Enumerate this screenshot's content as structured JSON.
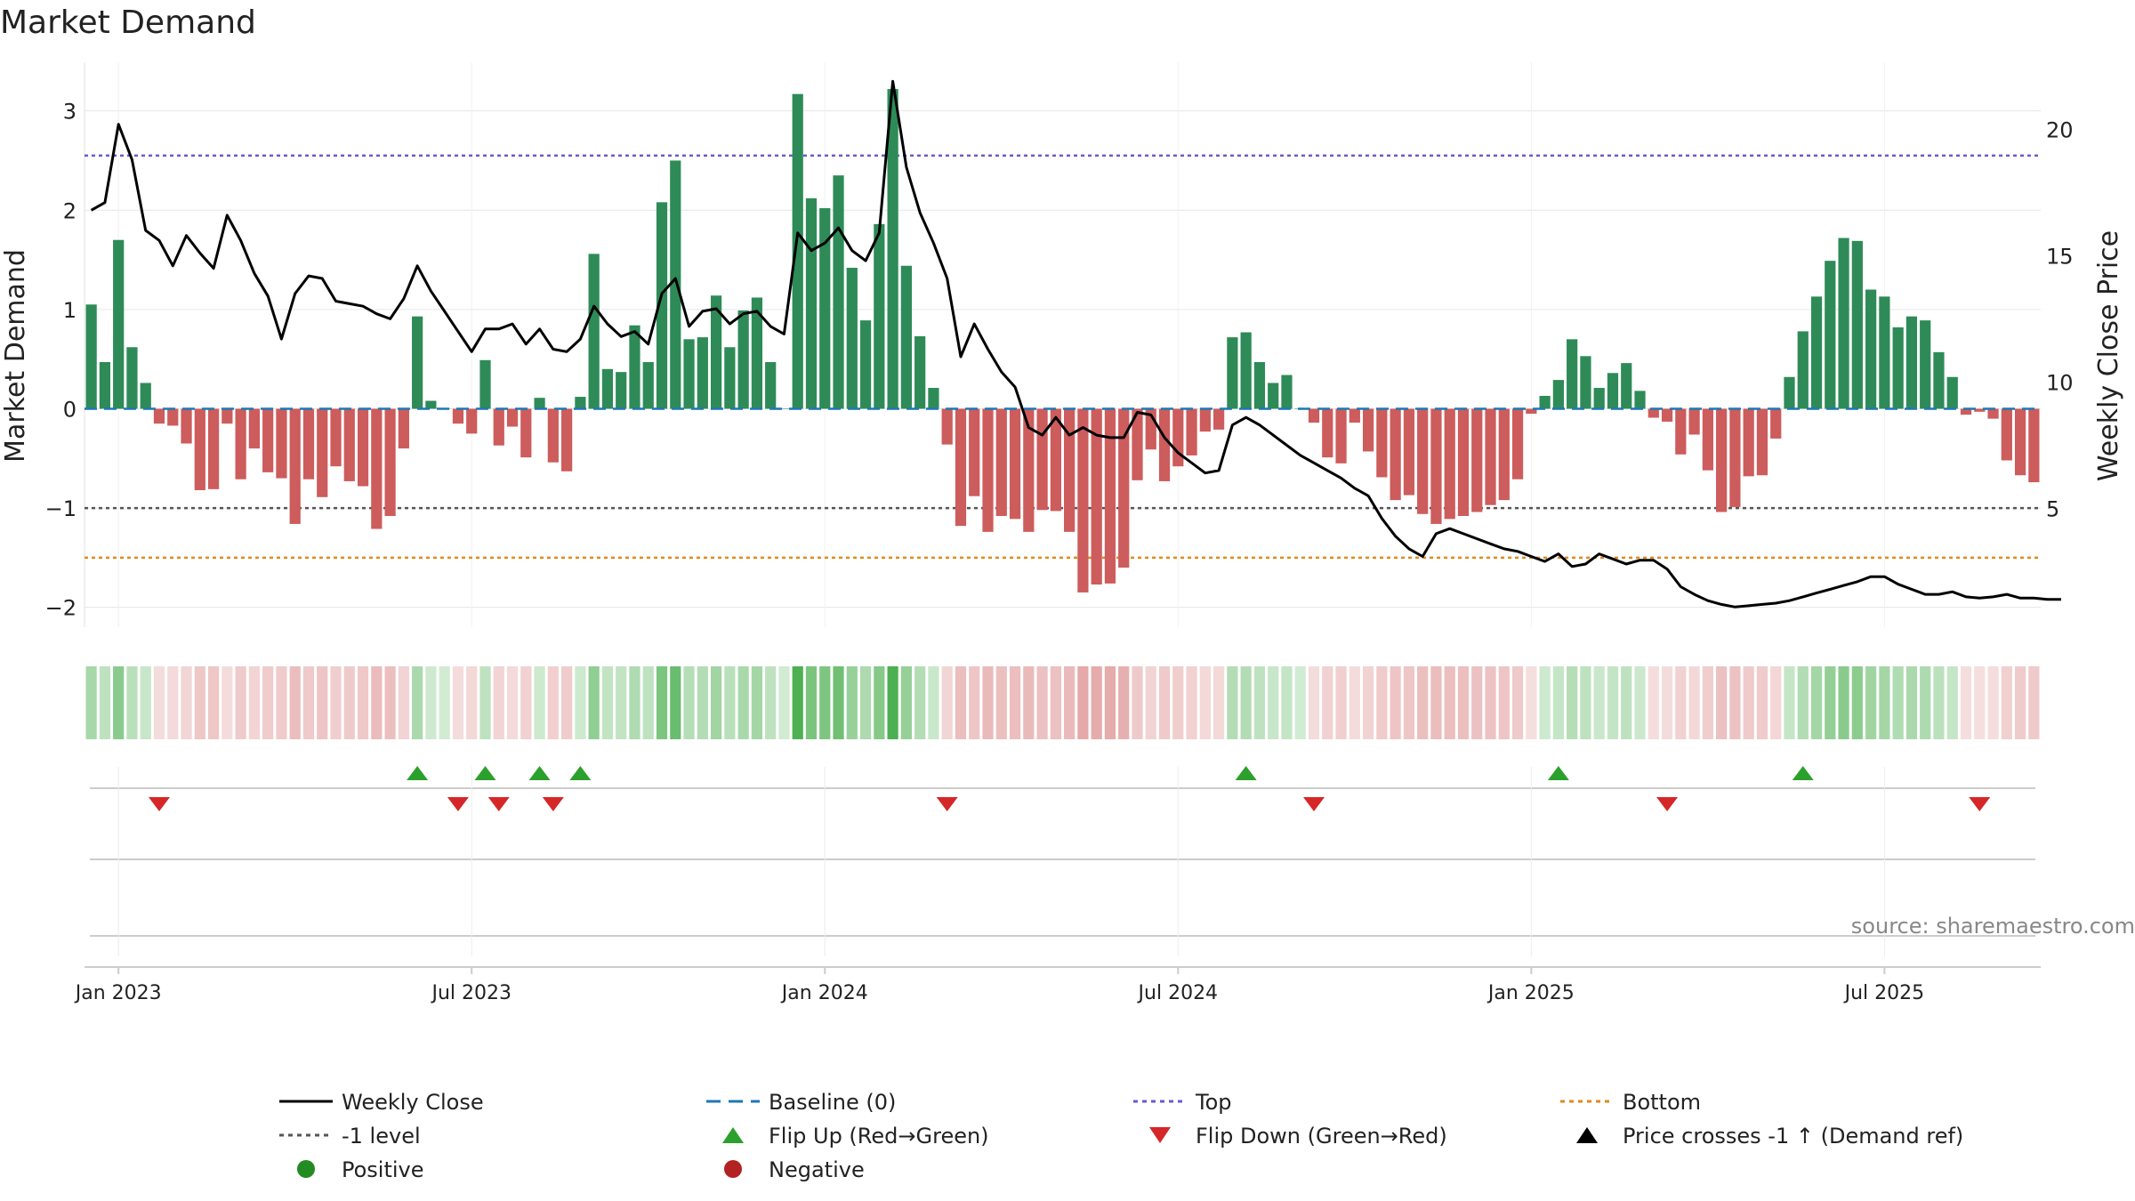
{
  "chart_data": {
    "type": "bar",
    "title": "Market Demand",
    "ylabel": "Market Demand",
    "y2label": "Weekly Close Price",
    "ylim": [
      -2.2,
      3.4
    ],
    "y2lim": [
      0.3,
      22.3
    ],
    "yticks": [
      3,
      2,
      1,
      0,
      -1,
      -2
    ],
    "ytick_labels": [
      "3",
      "2",
      "1",
      "0",
      "−1",
      "−2"
    ],
    "y2ticks": [
      20,
      15,
      10,
      5
    ],
    "y2tick_labels": [
      "20",
      "15",
      "10",
      "5"
    ],
    "reference_lines": {
      "baseline": 0,
      "top": 2.55,
      "minus_one": -1,
      "bottom": -1.5
    },
    "xtick_weeks": [
      0,
      26,
      52,
      78,
      104,
      130
    ],
    "xtick_labels": [
      "Jan 2023",
      "Jul 2023",
      "Jan 2024",
      "Jul 2024",
      "Jan 2025",
      "Jul 2025"
    ],
    "first_week_offset": -2,
    "demand": [
      1.05,
      0.47,
      1.7,
      0.62,
      0.26,
      -0.15,
      -0.17,
      -0.35,
      -0.82,
      -0.81,
      -0.15,
      -0.71,
      -0.4,
      -0.64,
      -0.7,
      -1.16,
      -0.71,
      -0.89,
      -0.58,
      -0.73,
      -0.78,
      -1.21,
      -1.08,
      -0.4,
      0.93,
      0.08,
      0.0,
      -0.15,
      -0.25,
      0.49,
      -0.37,
      -0.18,
      -0.49,
      0.11,
      -0.54,
      -0.63,
      0.12,
      1.56,
      0.4,
      0.37,
      0.84,
      0.47,
      2.08,
      2.5,
      0.7,
      0.72,
      1.14,
      0.62,
      0.99,
      1.12,
      0.47,
      0.0,
      3.17,
      2.12,
      2.02,
      2.35,
      1.42,
      0.89,
      1.86,
      3.22,
      1.44,
      0.73,
      0.21,
      -0.36,
      -1.18,
      -0.88,
      -1.24,
      -1.08,
      -1.11,
      -1.24,
      -1.02,
      -1.03,
      -1.24,
      -1.85,
      -1.77,
      -1.76,
      -1.6,
      -0.72,
      -0.41,
      -0.73,
      -0.58,
      -0.47,
      -0.23,
      -0.21,
      0.72,
      0.77,
      0.47,
      0.26,
      0.34,
      0.0,
      -0.14,
      -0.49,
      -0.55,
      -0.14,
      -0.43,
      -0.69,
      -0.92,
      -0.87,
      -1.06,
      -1.16,
      -1.11,
      -1.08,
      -1.04,
      -0.97,
      -0.92,
      -0.71,
      -0.05,
      0.13,
      0.29,
      0.7,
      0.53,
      0.21,
      0.36,
      0.46,
      0.18,
      -0.09,
      -0.13,
      -0.46,
      -0.26,
      -0.62,
      -1.04,
      -0.99,
      -0.68,
      -0.67,
      -0.3,
      0.32,
      0.78,
      1.13,
      1.49,
      1.72,
      1.69,
      1.2,
      1.13,
      0.82,
      0.93,
      0.89,
      0.57,
      0.32,
      -0.06,
      -0.03,
      -0.1,
      -0.52,
      -0.67,
      -0.74
    ],
    "close": [
      16.8,
      17.1,
      20.2,
      18.8,
      16.0,
      15.6,
      14.6,
      15.8,
      15.1,
      14.5,
      16.6,
      15.6,
      14.3,
      13.4,
      11.7,
      13.5,
      14.2,
      14.1,
      13.2,
      13.1,
      13.0,
      12.7,
      12.5,
      13.3,
      14.6,
      13.6,
      12.8,
      12.0,
      11.2,
      12.1,
      12.1,
      12.3,
      11.5,
      12.1,
      11.3,
      11.2,
      11.7,
      13.0,
      12.3,
      11.8,
      12.0,
      11.5,
      13.5,
      14.1,
      12.2,
      12.8,
      12.9,
      12.3,
      12.7,
      12.8,
      12.2,
      11.9,
      15.9,
      15.2,
      15.5,
      16.1,
      15.2,
      14.8,
      15.9,
      21.9,
      18.5,
      16.7,
      15.5,
      14.1,
      11.0,
      12.3,
      11.3,
      10.4,
      9.8,
      8.2,
      7.9,
      8.6,
      7.9,
      8.2,
      7.9,
      7.8,
      7.8,
      8.8,
      8.7,
      7.8,
      7.2,
      6.8,
      6.4,
      6.5,
      8.3,
      8.6,
      8.3,
      7.9,
      7.5,
      7.1,
      6.8,
      6.5,
      6.2,
      5.8,
      5.5,
      4.6,
      3.9,
      3.4,
      3.1,
      4.0,
      4.2,
      4.0,
      3.8,
      3.6,
      3.4,
      3.3,
      3.1,
      2.9,
      3.2,
      2.7,
      2.8,
      3.2,
      3.0,
      2.8,
      2.95,
      2.95,
      2.6,
      1.9,
      1.6,
      1.35,
      1.2,
      1.1,
      1.15,
      1.2,
      1.25,
      1.35,
      1.5,
      1.65,
      1.8,
      1.95,
      2.1,
      2.3,
      2.3,
      2.0,
      1.8,
      1.6,
      1.6,
      1.7,
      1.5,
      1.45,
      1.5,
      1.6,
      1.45,
      1.45,
      1.4,
      1.4
    ],
    "flip_up_weeks": [
      22,
      27,
      31,
      34,
      83,
      106,
      124
    ],
    "flip_down_weeks": [
      3,
      25,
      28,
      32,
      61,
      88,
      114,
      137
    ],
    "source": "source: sharemaestro.com",
    "legend_position": "bottom",
    "legend": [
      {
        "label": "Weekly Close",
        "marker": "solid-line",
        "color": "#000000"
      },
      {
        "label": "Baseline (0)",
        "marker": "dashed-line",
        "color": "#1f77b4"
      },
      {
        "label": "Top",
        "marker": "dotted-line",
        "color": "#6a5acd"
      },
      {
        "label": "Bottom",
        "marker": "dotted-line",
        "color": "#e08a1e"
      },
      {
        "label": "-1 level",
        "marker": "dotted-line",
        "color": "#555555"
      },
      {
        "label": "Flip Up (Red→Green)",
        "marker": "triangle-up",
        "color": "#2ca02c"
      },
      {
        "label": "Flip Down (Green→Red)",
        "marker": "triangle-down",
        "color": "#d62728"
      },
      {
        "label": "Price crosses -1 ↑ (Demand ref)",
        "marker": "triangle-up",
        "color": "#000000"
      },
      {
        "label": "Positive",
        "marker": "circle",
        "color": "#228b22"
      },
      {
        "label": "Negative",
        "marker": "circle",
        "color": "#b22222"
      }
    ],
    "colors": {
      "positive_bar": "#2e8b57",
      "negative_bar": "#cd5c5c",
      "close_line": "#000000",
      "baseline": "#1f77b4",
      "top": "#6a5acd",
      "minus_one": "#555555",
      "bottom": "#e08a1e",
      "flip_up": "#2ca02c",
      "flip_down": "#d62728",
      "heat_positive": "#4caf50",
      "heat_negative": "#d98080",
      "grid": "#e6e6e6",
      "axis": "#cccccc",
      "text": "#222222",
      "source_text": "#888888"
    }
  }
}
